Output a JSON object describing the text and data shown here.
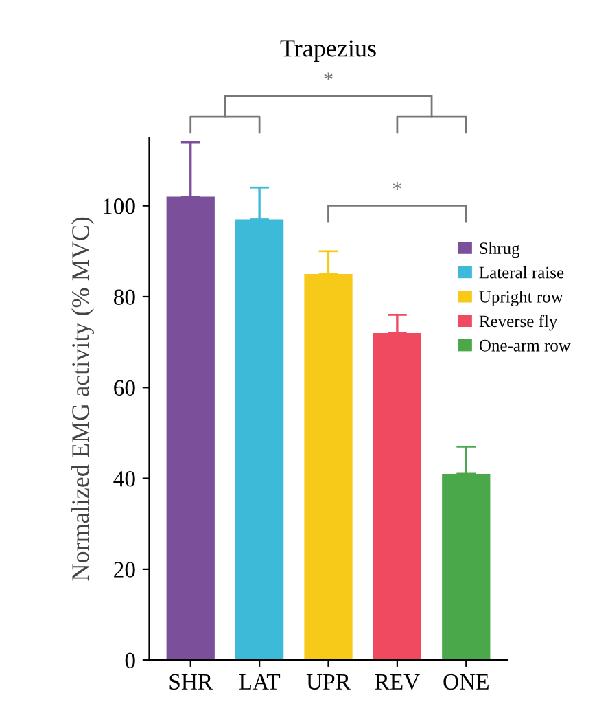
{
  "chart_data": {
    "type": "bar",
    "title": "Trapezius",
    "ylabel": "Normalized EMG activity (% MVC)",
    "categories": [
      "SHR",
      "LAT",
      "UPR",
      "REV",
      "ONE"
    ],
    "series": [
      {
        "name": "Shrug",
        "color": "#7b4f9a",
        "values": [
          102,
          null,
          null,
          null,
          null
        ],
        "errors": [
          [
            102,
            114
          ],
          null,
          null,
          null,
          null
        ]
      },
      {
        "name": "Lateral raise",
        "color": "#3cbad8",
        "values": [
          null,
          97,
          null,
          null,
          null
        ],
        "errors": [
          null,
          [
            97,
            104
          ],
          null,
          null,
          null
        ]
      },
      {
        "name": "Upright row",
        "color": "#f7c919",
        "values": [
          null,
          null,
          85,
          null,
          null
        ],
        "errors": [
          null,
          null,
          [
            85,
            90
          ],
          null,
          null
        ]
      },
      {
        "name": "Reverse fly",
        "color": "#ef4a5f",
        "values": [
          null,
          null,
          null,
          72,
          null
        ],
        "errors": [
          null,
          null,
          null,
          [
            72,
            76
          ],
          null
        ]
      },
      {
        "name": "One-arm row",
        "color": "#4aa84a",
        "values": [
          null,
          null,
          null,
          null,
          41
        ],
        "errors": [
          null,
          null,
          null,
          null,
          [
            41,
            47
          ]
        ]
      }
    ],
    "ylim": [
      0,
      115
    ],
    "yticks": [
      0,
      20,
      40,
      60,
      80,
      100
    ],
    "grid": false,
    "legend": "top right",
    "annotations": [
      "*",
      "*"
    ]
  }
}
